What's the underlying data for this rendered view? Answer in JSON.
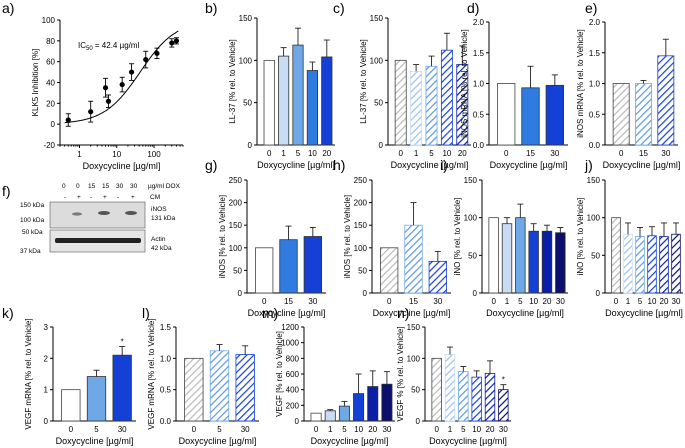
{
  "colors": {
    "white": "#ffffff",
    "light": "#c9dcf4",
    "mid": "#6fa8e6",
    "blue": "#2f7be0",
    "royal": "#1540d6",
    "deep": "#0a1ea6",
    "navy": "#0b0f6b",
    "grey": "#b9b9b9"
  },
  "chart_data": [
    {
      "id": "a",
      "panel": "a)",
      "type": "scatter",
      "title": "",
      "annotation": "IC50 = 42.4 µg/ml",
      "annotation_parts": {
        "prefix": "IC",
        "sub": "50",
        "suffix": " = 42.4 µg/ml"
      },
      "xlabel": "Doxycycline [µg/ml]",
      "ylabel": "KLK5 Inhibition [%]",
      "xscale": "log",
      "xlim": [
        0.3,
        600
      ],
      "ylim": [
        -20,
        100
      ],
      "yticks": [
        -20,
        0,
        20,
        40,
        60,
        80,
        100
      ],
      "xticks": [
        1,
        10,
        100
      ],
      "xtick_labels": [
        "1",
        "10",
        "100"
      ],
      "x": [
        0.5,
        2,
        5,
        6,
        14,
        25,
        60,
        120,
        300,
        400
      ],
      "y": [
        4,
        12,
        35,
        22,
        38,
        50,
        62,
        68,
        78,
        80
      ],
      "err": [
        6,
        10,
        9,
        6,
        7,
        8,
        8,
        5,
        4,
        3
      ],
      "fit": {
        "bottom": 0,
        "top": 100,
        "ic50": 42.4,
        "hill": 0.9
      }
    },
    {
      "id": "b",
      "panel": "b)",
      "type": "bar",
      "xlabel": "Doxycycline [µg/ml]",
      "ylabel": "LL-37 [% rel. to Vehicle]",
      "ylim": [
        0,
        150
      ],
      "yticks": [
        0,
        50,
        100,
        150
      ],
      "categories": [
        "0",
        "1",
        "5",
        "10",
        "20"
      ],
      "values": [
        100,
        105,
        118,
        88,
        104
      ],
      "errors": [
        0,
        10,
        20,
        10,
        20
      ],
      "fills": [
        "white",
        "light",
        "mid",
        "blue",
        "royal"
      ],
      "hatch": false
    },
    {
      "id": "c",
      "panel": "c)",
      "type": "bar",
      "xlabel": "Doxycycline [µg/ml]",
      "ylabel": "LL-37 [% rel. to Vehicle]",
      "ylim": [
        0,
        150
      ],
      "yticks": [
        0,
        50,
        100,
        150
      ],
      "categories": [
        "0",
        "1",
        "5",
        "10",
        "20"
      ],
      "values": [
        100,
        87,
        93,
        112,
        95
      ],
      "errors": [
        0,
        8,
        12,
        20,
        22
      ],
      "fills": [
        "grey",
        "light",
        "mid",
        "royal",
        "deep"
      ],
      "hatch": true
    },
    {
      "id": "d",
      "panel": "d)",
      "type": "bar",
      "xlabel": "Doxycycline [µg/ml]",
      "ylabel": "iNOS mRNA [% rel. to Vehicle]",
      "ylim": [
        0,
        2.0
      ],
      "yticks": [
        0,
        0.5,
        1.0,
        1.5,
        2.0
      ],
      "ytick_labels": [
        "0.0",
        "0.5",
        "1.0",
        "1.5",
        "2.0"
      ],
      "categories": [
        "0",
        "15",
        "30"
      ],
      "values": [
        1.0,
        0.93,
        0.97
      ],
      "errors": [
        0,
        0.35,
        0.17
      ],
      "fills": [
        "white",
        "blue",
        "royal"
      ],
      "hatch": false
    },
    {
      "id": "e",
      "panel": "e)",
      "type": "bar",
      "xlabel": "Doxycycline [µg/ml]",
      "ylabel": "iNOS mRNA [% rel. to Vehicle]",
      "ylim": [
        0,
        2.0
      ],
      "yticks": [
        0,
        0.5,
        1.0,
        1.5,
        2.0
      ],
      "ytick_labels": [
        "0.0",
        "0.5",
        "1.0",
        "1.5",
        "2.0"
      ],
      "categories": [
        "0",
        "15",
        "30"
      ],
      "values": [
        1.0,
        1.0,
        1.45
      ],
      "errors": [
        0,
        0.05,
        0.27
      ],
      "fills": [
        "grey",
        "mid",
        "royal"
      ],
      "hatch": true
    },
    {
      "id": "g",
      "panel": "g)",
      "type": "bar",
      "xlabel": "Doxycycline [µg/ml]",
      "ylabel": "iNOS [% rel. to Vehicle]",
      "ylim": [
        0,
        250
      ],
      "yticks": [
        0,
        50,
        100,
        150,
        200,
        250
      ],
      "categories": [
        "0",
        "15",
        "30"
      ],
      "values": [
        100,
        118,
        125
      ],
      "errors": [
        0,
        30,
        20
      ],
      "fills": [
        "white",
        "blue",
        "royal"
      ],
      "hatch": false
    },
    {
      "id": "h",
      "panel": "h)",
      "type": "bar",
      "xlabel": "Doxycycline [µg/ml]",
      "ylabel": "iNOS [% rel. to Vehicle]",
      "ylim": [
        0,
        250
      ],
      "yticks": [
        0,
        50,
        100,
        150,
        200,
        250
      ],
      "categories": [
        "0",
        "15",
        "30"
      ],
      "values": [
        100,
        150,
        70
      ],
      "errors": [
        0,
        50,
        22
      ],
      "fills": [
        "grey",
        "mid",
        "royal"
      ],
      "hatch": true
    },
    {
      "id": "i",
      "panel": "i)",
      "type": "bar",
      "xlabel": "Doxycycline [µg/ml]",
      "ylabel": "iNO [% rel. to Vehicle]",
      "ylim": [
        0,
        150
      ],
      "yticks": [
        0,
        50,
        100,
        150
      ],
      "categories": [
        "0",
        "1",
        "5",
        "10",
        "20",
        "30"
      ],
      "values": [
        100,
        92,
        100,
        82,
        82,
        80
      ],
      "errors": [
        0,
        8,
        18,
        10,
        8,
        7
      ],
      "fills": [
        "white",
        "light",
        "mid",
        "royal",
        "deep",
        "navy"
      ],
      "hatch": false
    },
    {
      "id": "j",
      "panel": "j)",
      "type": "bar",
      "xlabel": "Doxycycline [µg/ml]",
      "ylabel": "iNO [% rel. to Vehicle]",
      "ylim": [
        0,
        150
      ],
      "yticks": [
        0,
        50,
        100,
        150
      ],
      "categories": [
        "0",
        "1",
        "5",
        "10",
        "20",
        "30"
      ],
      "values": [
        100,
        78,
        75,
        76,
        75,
        78
      ],
      "errors": [
        0,
        15,
        12,
        12,
        18,
        15
      ],
      "fills": [
        "grey",
        "light",
        "mid",
        "royal",
        "deep",
        "navy"
      ],
      "hatch": true
    },
    {
      "id": "k",
      "panel": "k)",
      "type": "bar",
      "xlabel": "Doxycycline [µg/ml]",
      "ylabel": "VEGF mRNA [% rel. to Vehicle]",
      "ylim": [
        0,
        3
      ],
      "yticks": [
        0,
        1,
        2,
        3
      ],
      "categories": [
        "0",
        "5",
        "30"
      ],
      "values": [
        1.0,
        1.42,
        2.1
      ],
      "errors": [
        0,
        0.2,
        0.28
      ],
      "fills": [
        "white",
        "mid",
        "royal"
      ],
      "hatch": false,
      "significance": [
        "",
        "",
        "*"
      ]
    },
    {
      "id": "l",
      "panel": "l)",
      "type": "bar",
      "xlabel": "Doxycycline [µg/ml]",
      "ylabel": "VEGF mRNA [% rel. to Vehicle]",
      "ylim": [
        0,
        1.5
      ],
      "yticks": [
        0,
        0.5,
        1.0,
        1.5
      ],
      "ytick_labels": [
        "0.0",
        "0.5",
        "1.0",
        "1.5"
      ],
      "categories": [
        "0",
        "5",
        "30"
      ],
      "values": [
        1.0,
        1.12,
        1.06
      ],
      "errors": [
        0,
        0.1,
        0.14
      ],
      "fills": [
        "grey",
        "mid",
        "royal"
      ],
      "hatch": true
    },
    {
      "id": "m",
      "panel": "m)",
      "type": "bar",
      "xlabel": "Doxycycline [µg/ml]",
      "ylabel": "VEGF [% rel. to Vehicle]",
      "ylim": [
        0,
        1200
      ],
      "yticks": [
        0,
        200,
        400,
        600,
        800,
        1000,
        1200
      ],
      "categories": [
        "0",
        "1",
        "5",
        "10",
        "20",
        "30"
      ],
      "values": [
        100,
        130,
        190,
        350,
        440,
        470
      ],
      "errors": [
        0,
        15,
        60,
        250,
        200,
        160
      ],
      "fills": [
        "white",
        "light",
        "mid",
        "royal",
        "deep",
        "navy"
      ],
      "hatch": false
    },
    {
      "id": "n",
      "panel": "n)",
      "type": "bar",
      "xlabel": "Doxycycline [µg/ml]",
      "ylabel": "VEGF % [% rel. to Vehicle]",
      "ylim": [
        0,
        150
      ],
      "yticks": [
        0,
        50,
        100,
        150
      ],
      "categories": [
        "0",
        "1",
        "5",
        "10",
        "20",
        "30"
      ],
      "values": [
        100,
        106,
        79,
        70,
        76,
        50
      ],
      "errors": [
        0,
        12,
        8,
        10,
        20,
        8
      ],
      "fills": [
        "grey",
        "light",
        "mid",
        "royal",
        "deep",
        "navy"
      ],
      "hatch": true,
      "significance": [
        "",
        "",
        "",
        "",
        "",
        "*"
      ]
    }
  ],
  "western_blot": {
    "panel": "f)",
    "dox_header": [
      "0",
      "0",
      "15",
      "15",
      "30",
      "30"
    ],
    "dox_unit": "µg/ml DOX",
    "cm_header": [
      "-",
      "+",
      "-",
      "+",
      "-",
      "+"
    ],
    "cm_label": "CM",
    "ladder": [
      "150 kDa",
      "100 kDa",
      "50 kDa",
      "37 kDa"
    ],
    "band_labels": [
      {
        "protein": "iNOS",
        "size": "131 kDa"
      },
      {
        "protein": "Actin",
        "size": "42 kDa"
      }
    ]
  }
}
